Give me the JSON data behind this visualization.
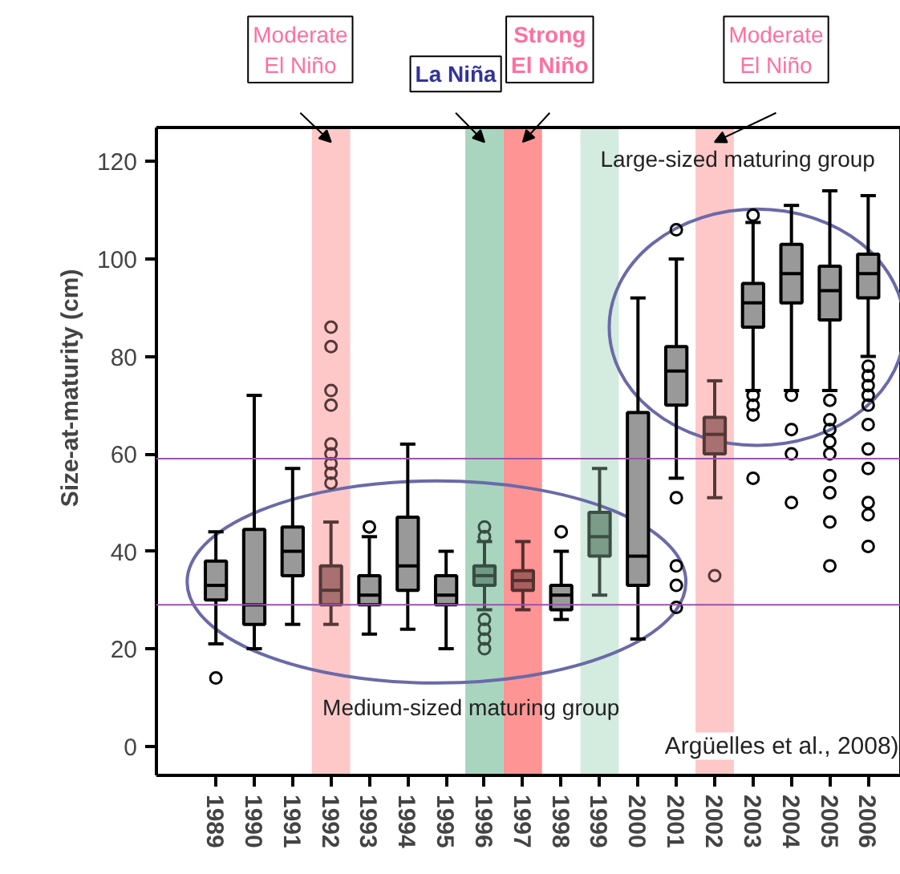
{
  "chart_data": {
    "type": "box",
    "ylabel": "Size-at-maturity (cm)",
    "categories": [
      "1989",
      "1990",
      "1991",
      "1992",
      "1993",
      "1994",
      "1995",
      "1996",
      "1997",
      "1998",
      "1999",
      "2000",
      "2001",
      "2002",
      "2003",
      "2004",
      "2005",
      "2006"
    ],
    "colors": [
      "#999999",
      "#999999",
      "#999999",
      "#a87070",
      "#999999",
      "#999999",
      "#999999",
      "#6f9a84",
      "#a85f5f",
      "#999999",
      "#7b9c88",
      "#999999",
      "#999999",
      "#a87070",
      "#999999",
      "#999999",
      "#999999",
      "#999999"
    ],
    "boxes": [
      {
        "low": 21,
        "q1": 30,
        "median": 33,
        "q3": 38,
        "high": 44,
        "outliers": [
          14
        ]
      },
      {
        "low": 20,
        "q1": 25,
        "median": 29,
        "q3": 44.5,
        "high": 72
      },
      {
        "low": 25,
        "q1": 35,
        "median": 40,
        "q3": 45,
        "high": 57
      },
      {
        "low": 25,
        "q1": 29,
        "median": 32,
        "q3": 37,
        "high": 46,
        "outliers": [
          54,
          56,
          58,
          60,
          62,
          70,
          73,
          82,
          86
        ]
      },
      {
        "low": 23,
        "q1": 29,
        "median": 31,
        "q3": 35,
        "high": 43,
        "outliers": [
          45
        ]
      },
      {
        "low": 24,
        "q1": 32,
        "median": 37,
        "q3": 47,
        "high": 62
      },
      {
        "low": 20,
        "q1": 29,
        "median": 31,
        "q3": 35,
        "high": 40
      },
      {
        "low": 28,
        "q1": 33,
        "median": 35,
        "q3": 37,
        "high": 42,
        "outliers": [
          43,
          45,
          26,
          24,
          22,
          20
        ]
      },
      {
        "low": 28,
        "q1": 32,
        "median": 34,
        "q3": 36,
        "high": 42
      },
      {
        "low": 26,
        "q1": 28,
        "median": 31,
        "q3": 33,
        "high": 40,
        "outliers": [
          44
        ]
      },
      {
        "low": 31,
        "q1": 39,
        "median": 43,
        "q3": 48,
        "high": 57
      },
      {
        "low": 22,
        "q1": 33,
        "median": 39,
        "q3": 68.5,
        "high": 92
      },
      {
        "low": 55,
        "q1": 70,
        "median": 77,
        "q3": 82,
        "high": 100,
        "outliers": [
          106,
          51,
          37,
          33,
          28.5
        ]
      },
      {
        "low": 51,
        "q1": 60,
        "median": 64,
        "q3": 67.5,
        "high": 75,
        "outliers": [
          35
        ]
      },
      {
        "low": 73,
        "q1": 86,
        "median": 91,
        "q3": 95,
        "high": 107.5,
        "outliers": [
          109,
          72,
          70,
          68,
          55
        ]
      },
      {
        "low": 73,
        "q1": 91,
        "median": 97,
        "q3": 103,
        "high": 111,
        "outliers": [
          72,
          65,
          60,
          50
        ]
      },
      {
        "low": 73,
        "q1": 87.5,
        "median": 93.5,
        "q3": 98.5,
        "high": 114,
        "outliers": [
          71,
          67,
          65,
          62.5,
          60,
          55.5,
          52,
          46,
          37
        ]
      },
      {
        "low": 80,
        "q1": 92,
        "median": 97,
        "q3": 101,
        "high": 113,
        "outliers": [
          78,
          76,
          74,
          72,
          70,
          66,
          61,
          57,
          50,
          47.5,
          41
        ]
      }
    ],
    "ylim": [
      -6,
      127
    ],
    "yticks": [
      0,
      20,
      40,
      60,
      80,
      100,
      120
    ],
    "ref_lines": [
      {
        "axis": "y",
        "value": 59,
        "color": "#9955aa"
      },
      {
        "axis": "y",
        "value": 29,
        "color": "#9955aa"
      }
    ],
    "bands": [
      {
        "axis": "x",
        "from": "1992",
        "to": "1992",
        "label": "Moderate El Niño",
        "color": "#ffc8c8"
      },
      {
        "axis": "x",
        "from": "1996",
        "to": "1996",
        "label": "La Niña",
        "color": "#a9d5bf"
      },
      {
        "axis": "x",
        "from": "1997",
        "to": "1997",
        "label": "Strong El Niño",
        "color": "#ff9494"
      },
      {
        "axis": "x",
        "from": "1999",
        "to": "1999",
        "color": "#d4ebdf"
      },
      {
        "axis": "x",
        "from": "2002",
        "to": "2002",
        "label": "Moderate El Niño",
        "color": "#ffc8c8"
      }
    ],
    "annotations": [
      "Medium-sized maturing group",
      "Large-sized maturing group",
      "Argüelles et al., 2008)"
    ],
    "marker": "circle",
    "grid": false
  }
}
